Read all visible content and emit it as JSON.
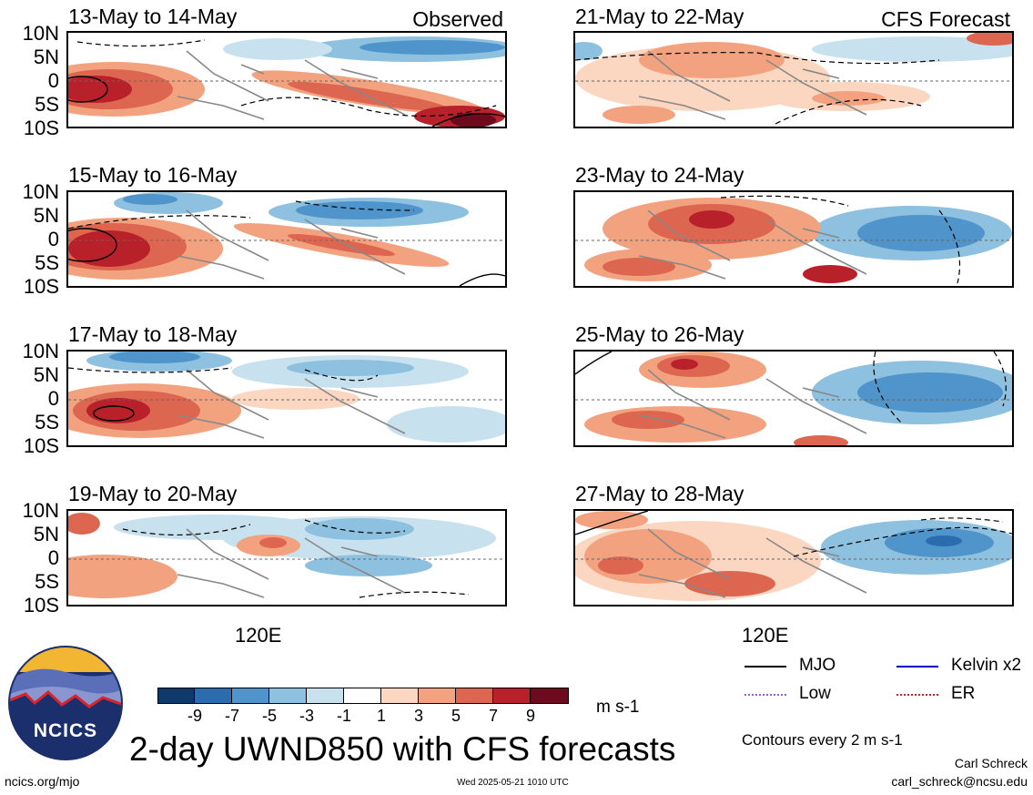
{
  "panels": {
    "observed": [
      {
        "title": "13-May to 14-May",
        "corner": "Observed"
      },
      {
        "title": "15-May to 16-May",
        "corner": ""
      },
      {
        "title": "17-May to 18-May",
        "corner": ""
      },
      {
        "title": "19-May to 20-May",
        "corner": ""
      }
    ],
    "forecast": [
      {
        "title": "21-May to 22-May",
        "corner": "CFS Forecast"
      },
      {
        "title": "23-May to 24-May",
        "corner": ""
      },
      {
        "title": "25-May to 26-May",
        "corner": ""
      },
      {
        "title": "27-May to 28-May",
        "corner": ""
      }
    ]
  },
  "axes": {
    "lat_labels": [
      "10N",
      "5N",
      "0",
      "5S",
      "10S"
    ],
    "lon_label": "120E"
  },
  "colorbar": {
    "labels": [
      "-9",
      "-7",
      "-5",
      "-3",
      "-1",
      "1",
      "3",
      "5",
      "7",
      "9"
    ],
    "units": "m s-1",
    "colors": [
      "#0d3a6b",
      "#2a6cad",
      "#4f94cb",
      "#8ec0e0",
      "#c8e1ef",
      "#ffffff",
      "#fbd6c0",
      "#f3a27f",
      "#dd6650",
      "#b8202a",
      "#6d0a1e"
    ]
  },
  "legend": {
    "items": [
      {
        "label": "MJO",
        "color": "#000000",
        "style": "solid"
      },
      {
        "label": "Kelvin x2",
        "color": "#0000cc",
        "style": "solid"
      },
      {
        "label": "Low",
        "color": "#9b59d0",
        "style": "dotted"
      },
      {
        "label": "ER",
        "color": "#d02020",
        "style": "dotted"
      }
    ],
    "contour_note": "Contours every 2 m s-1"
  },
  "title": "2-day UWND850 with CFS forecasts",
  "logo_text": "NCICS",
  "footer": {
    "url": "ncics.org/mjo",
    "timestamp": "Wed 2025-05-21 1010 UTC",
    "author": "Carl Schreck",
    "email": "carl_schreck@ncsu.edu"
  }
}
